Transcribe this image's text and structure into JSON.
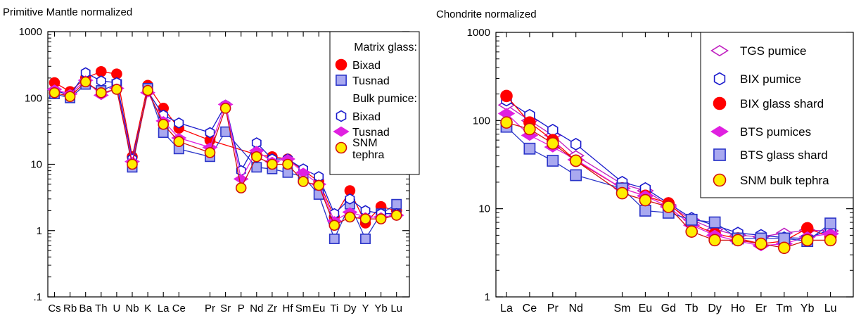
{
  "chart_data": [
    {
      "type": "line",
      "title": "Primitive Mantle normalized",
      "yscale": "log",
      "ylim": [
        0.1,
        1000
      ],
      "yticks": [
        {
          "value": 0.1,
          "label": ".1"
        },
        {
          "value": 1,
          "label": "1"
        },
        {
          "value": 10,
          "label": "10"
        },
        {
          "value": 100,
          "label": "100"
        },
        {
          "value": 1000,
          "label": "1000"
        }
      ],
      "categories": [
        "Cs",
        "Rb",
        "Ba",
        "Th",
        "U",
        "Nb",
        "K",
        "La",
        "Ce",
        "Pr",
        "Sr",
        "P",
        "Nd",
        "Zr",
        "Hf",
        "Sm",
        "Eu",
        "Ti",
        "Dy",
        "Y",
        "Yb",
        "Lu"
      ],
      "category_positions": [
        1,
        2,
        3,
        4,
        5,
        6,
        7,
        8,
        9,
        11,
        12,
        13,
        14,
        15,
        16,
        17,
        18,
        19,
        20,
        21,
        22,
        23
      ],
      "grid": false,
      "legend": {
        "position": "top-right",
        "groups": [
          {
            "heading": "Matrix glass:",
            "entries": [
              "Bixad",
              "Tusnad"
            ]
          },
          {
            "heading": "Bulk pumice:",
            "entries": [
              "Bixad",
              "Tusnad",
              "SNM tephra"
            ]
          }
        ]
      },
      "series": [
        {
          "name": "Bixad",
          "group": "Matrix glass",
          "marker": "circle",
          "color": "#ff0000",
          "fill": "#ff0000",
          "line": "#ff0000",
          "values": [
            170,
            125,
            200,
            250,
            230,
            13,
            155,
            70,
            35,
            23,
            null,
            null,
            14,
            13,
            12,
            null,
            5.5,
            1.6,
            4,
            1.3,
            2.3,
            2.0
          ]
        },
        {
          "name": "Tusnad",
          "group": "Matrix glass",
          "marker": "square",
          "color": "#2a34c8",
          "fill": "#a9a9f0",
          "line": "#2a34c8",
          "values": [
            115,
            100,
            160,
            130,
            160,
            9,
            140,
            30,
            17,
            13,
            31,
            null,
            9,
            8.5,
            7.5,
            6.5,
            3.5,
            0.75,
            2.5,
            0.75,
            1.8,
            2.5
          ]
        },
        {
          "name": "Bixad",
          "group": "Bulk pumice",
          "marker": "hexagon",
          "color": "#1a1acc",
          "fill": "#ffffff",
          "line": "#1a1acc",
          "values": [
            130,
            110,
            240,
            180,
            170,
            12,
            125,
            55,
            42,
            30,
            78,
            8,
            21,
            12,
            12,
            8.5,
            6.5,
            1.8,
            3,
            2.0,
            1.8,
            1.8
          ]
        },
        {
          "name": "Tusnad",
          "group": "Bulk pumice",
          "marker": "diamond",
          "color": "#e020e0",
          "fill": "#e020e0",
          "line": "#e020e0",
          "values": [
            135,
            115,
            185,
            110,
            140,
            11,
            120,
            45,
            25,
            18,
            80,
            6,
            16,
            11,
            12,
            7.5,
            5,
            1.4,
            1.9,
            1.6,
            1.6,
            1.7
          ]
        },
        {
          "name": "SNM tephra",
          "group": "Bulk pumice",
          "marker": "circle",
          "color": "#d01010",
          "fill": "#ffee00",
          "line": "#d01010",
          "values": [
            120,
            105,
            175,
            120,
            135,
            10,
            130,
            40,
            22,
            15,
            70,
            4.4,
            13,
            10,
            10,
            5.5,
            4.8,
            1.2,
            1.6,
            1.5,
            1.5,
            1.7
          ]
        }
      ]
    },
    {
      "type": "line",
      "title": "Chondrite normalized",
      "yscale": "log",
      "ylim": [
        1,
        1000
      ],
      "yticks": [
        {
          "value": 1,
          "label": "1"
        },
        {
          "value": 10,
          "label": "10"
        },
        {
          "value": 100,
          "label": "100"
        },
        {
          "value": 1000,
          "label": "1000"
        }
      ],
      "categories": [
        "La",
        "Ce",
        "Pr",
        "Nd",
        "Sm",
        "Eu",
        "Gd",
        "Tb",
        "Dy",
        "Ho",
        "Er",
        "Tm",
        "Yb",
        "Lu"
      ],
      "category_positions": [
        1,
        2,
        3,
        4,
        6,
        7,
        8,
        9,
        10,
        11,
        12,
        13,
        14,
        15
      ],
      "grid": false,
      "legend": {
        "position": "top-right",
        "groups": [
          {
            "heading": "",
            "entries": [
              "TGS pumice",
              "BIX pumice",
              "BIX glass shard",
              "BTS pumices",
              "BTS glass shard",
              "SNM bulk tephra"
            ]
          }
        ]
      },
      "series": [
        {
          "name": "TGS pumice",
          "marker": "diamond-open",
          "color": "#c020c0",
          "fill": "#ffffff",
          "line": "#c020c0",
          "values": [
            150,
            100,
            68,
            40,
            19,
            16,
            11,
            7.5,
            5.8,
            5.0,
            4.8,
            5.3,
            5.7,
            5.6
          ]
        },
        {
          "name": "BIX pumice",
          "marker": "hexagon",
          "color": "#1a1acc",
          "fill": "#ffffff",
          "line": "#1a1acc",
          "values": [
            170,
            115,
            78,
            54,
            20,
            17,
            11.5,
            7.8,
            6.5,
            5.3,
            5.0,
            4.7,
            4.6,
            5.8
          ]
        },
        {
          "name": "BIX glass shard",
          "marker": "circle",
          "color": "#ff0000",
          "fill": "#ff0000",
          "line": "#ff0000",
          "values": [
            190,
            95,
            60,
            35,
            17,
            14,
            11.5,
            6.8,
            5.2,
            4.6,
            4.0,
            4.3,
            6.0,
            4.8
          ]
        },
        {
          "name": "BTS pumices",
          "marker": "diamond",
          "color": "#e020e0",
          "fill": "#e020e0",
          "line": "#e020e0",
          "values": [
            120,
            68,
            50,
            36,
            17,
            14,
            10.5,
            6.5,
            5.0,
            4.3,
            3.8,
            4.0,
            4.8,
            5.2
          ]
        },
        {
          "name": "BTS glass shard",
          "marker": "square",
          "color": "#2a34c8",
          "fill": "#a9a9f0",
          "line": "#2a34c8",
          "values": [
            85,
            48,
            35,
            24,
            17,
            9.5,
            9.0,
            7.5,
            7.0,
            4.6,
            4.6,
            4.6,
            4.3,
            6.8
          ]
        },
        {
          "name": "SNM bulk tephra",
          "marker": "circle",
          "color": "#d01010",
          "fill": "#ffee00",
          "line": "#d01010",
          "values": [
            95,
            80,
            55,
            35,
            15,
            12.5,
            10.5,
            5.5,
            4.4,
            4.4,
            4.0,
            3.6,
            4.4,
            4.4
          ]
        }
      ]
    }
  ]
}
